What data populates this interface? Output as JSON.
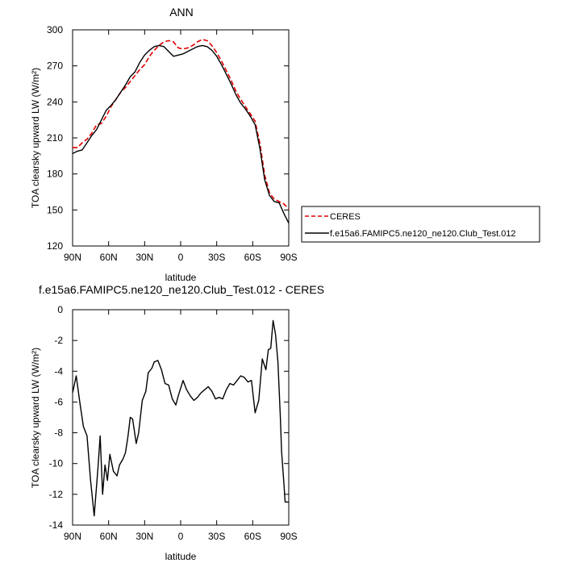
{
  "chart_data": [
    {
      "type": "line",
      "title": "ANN",
      "xlabel": "latitude",
      "ylabel": "TOA clearsky upward LW (W/m²)",
      "xlim": [
        90,
        -90
      ],
      "ylim": [
        120,
        300
      ],
      "x_ticks": [
        90,
        60,
        30,
        0,
        -30,
        -60,
        -90
      ],
      "x_tick_labels": [
        "90N",
        "60N",
        "30N",
        "0",
        "30S",
        "60S",
        "90S"
      ],
      "y_ticks": [
        120,
        150,
        180,
        210,
        240,
        270,
        300
      ],
      "y_tick_labels": [
        "120",
        "150",
        "180",
        "210",
        "240",
        "270",
        "300"
      ],
      "legend_position": "right",
      "series": [
        {
          "name": "CERES",
          "color": "#e00000",
          "dash": "dashed",
          "x": [
            90,
            86,
            82,
            78,
            74,
            70,
            66,
            62,
            58,
            54,
            50,
            46,
            42,
            38,
            34,
            30,
            26,
            22,
            18,
            14,
            10,
            6,
            2,
            -2,
            -6,
            -10,
            -14,
            -18,
            -22,
            -26,
            -30,
            -34,
            -38,
            -42,
            -46,
            -50,
            -54,
            -58,
            -62,
            -66,
            -70,
            -74,
            -78,
            -82,
            -86,
            -90
          ],
          "y": [
            202,
            202,
            206,
            209,
            214,
            221,
            222,
            228,
            236,
            242,
            248,
            252,
            257,
            262,
            267,
            271,
            278,
            283,
            287,
            290,
            291,
            290,
            285,
            284,
            285,
            287,
            290,
            292,
            291,
            287,
            281,
            274,
            266,
            258,
            249,
            242,
            236,
            230,
            224,
            205,
            179,
            164,
            159,
            157,
            155,
            151
          ]
        },
        {
          "name": "f.e15a6.FAMIPC5.ne120_ne120.Club_Test.012",
          "color": "#000000",
          "dash": "solid",
          "x": [
            90,
            86,
            82,
            78,
            74,
            70,
            66,
            62,
            58,
            54,
            50,
            46,
            42,
            38,
            34,
            30,
            26,
            22,
            18,
            14,
            10,
            6,
            2,
            -2,
            -6,
            -10,
            -14,
            -18,
            -22,
            -26,
            -30,
            -34,
            -38,
            -42,
            -46,
            -50,
            -54,
            -58,
            -62,
            -66,
            -70,
            -74,
            -78,
            -82,
            -86,
            -90
          ],
          "y": [
            197,
            199,
            200,
            206,
            212,
            217,
            225,
            233,
            237,
            242,
            248,
            254,
            261,
            265,
            273,
            279,
            283,
            286,
            287,
            286,
            282,
            278,
            279,
            280,
            282,
            284,
            286,
            287,
            286,
            283,
            278,
            271,
            263,
            255,
            246,
            239,
            234,
            228,
            221,
            201,
            175,
            162,
            157,
            156,
            147,
            139
          ]
        }
      ]
    },
    {
      "type": "line",
      "title": "f.e15a6.FAMIPC5.ne120_ne120.Club_Test.012 - CERES",
      "xlabel": "latitude",
      "ylabel": "TOA clearsky upward LW (W/m²)",
      "xlim": [
        90,
        -90
      ],
      "ylim": [
        -14,
        0
      ],
      "x_ticks": [
        90,
        60,
        30,
        0,
        -30,
        -60,
        -90
      ],
      "x_tick_labels": [
        "90N",
        "60N",
        "30N",
        "0",
        "30S",
        "60S",
        "90S"
      ],
      "y_ticks": [
        -14,
        -12,
        -10,
        -8,
        -6,
        -4,
        -2,
        0
      ],
      "y_tick_labels": [
        "-14",
        "-12",
        "-10",
        "-8",
        "-6",
        "-4",
        "-2",
        "0"
      ],
      "series": [
        {
          "color": "#000000",
          "dash": "solid",
          "x": [
            90,
            87,
            84,
            81,
            78,
            75,
            72,
            69,
            67,
            65,
            63,
            61,
            59,
            56,
            53,
            51,
            48,
            46,
            44,
            42,
            40,
            37,
            35,
            32,
            29,
            27,
            24,
            22,
            19,
            16,
            13,
            10,
            7,
            4,
            2,
            -2,
            -5,
            -8,
            -11,
            -14,
            -17,
            -20,
            -23,
            -26,
            -29,
            -32,
            -35,
            -38,
            -41,
            -44,
            -47,
            -50,
            -53,
            -56,
            -59,
            -62,
            -65,
            -68,
            -71,
            -73,
            -75,
            -77,
            -79,
            -81,
            -83,
            -84,
            -86,
            -87,
            -88,
            -90
          ],
          "y": [
            -5.4,
            -4.3,
            -6.0,
            -7.6,
            -8.2,
            -11.1,
            -13.4,
            -10.4,
            -8.2,
            -12.0,
            -10.1,
            -11.1,
            -9.4,
            -10.5,
            -10.8,
            -10.1,
            -9.7,
            -9.3,
            -8.3,
            -7.0,
            -7.1,
            -8.7,
            -8.0,
            -5.9,
            -5.3,
            -4.1,
            -3.8,
            -3.4,
            -3.3,
            -3.9,
            -4.8,
            -4.9,
            -5.8,
            -6.2,
            -5.6,
            -4.6,
            -5.2,
            -5.6,
            -5.9,
            -5.7,
            -5.4,
            -5.2,
            -5.0,
            -5.3,
            -5.8,
            -5.7,
            -5.8,
            -5.2,
            -4.8,
            -4.9,
            -4.6,
            -4.3,
            -4.4,
            -4.7,
            -4.6,
            -6.7,
            -5.9,
            -3.2,
            -3.9,
            -2.6,
            -2.5,
            -0.7,
            -1.6,
            -3.4,
            -7.0,
            -9.2,
            -11.3,
            -12.5,
            -12.5,
            -12.5
          ]
        }
      ]
    }
  ]
}
